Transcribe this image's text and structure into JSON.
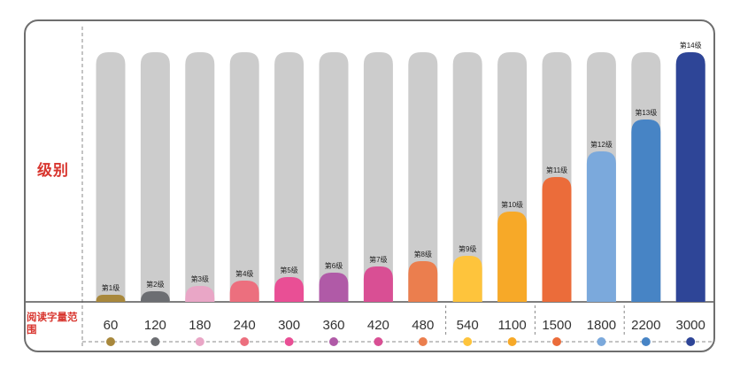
{
  "chart_data": {
    "type": "bar",
    "title": "",
    "ylabel": "级别",
    "row_label": "阅读字量范围",
    "categories": [
      "60",
      "120",
      "180",
      "240",
      "300",
      "360",
      "420",
      "480",
      "540",
      "1100",
      "1500",
      "1800",
      "2200",
      "3000"
    ],
    "level_labels": [
      "第1级",
      "第2级",
      "第3级",
      "第4级",
      "第5级",
      "第6级",
      "第7级",
      "第8级",
      "第9级",
      "第10级",
      "第11级",
      "第12级",
      "第13级",
      "第14级"
    ],
    "values": [
      1,
      2,
      3,
      4,
      5,
      6,
      7,
      8,
      9,
      10,
      11,
      12,
      13,
      14
    ],
    "ylim": [
      0,
      14
    ],
    "colors": [
      "#a8883c",
      "#6c6e72",
      "#e9a6c6",
      "#ec6f7e",
      "#e94f95",
      "#b05aa7",
      "#d94f94",
      "#eb7e4e",
      "#fec43c",
      "#f7a928",
      "#eb6c3a",
      "#7ba9dc",
      "#4784c5",
      "#2e4597"
    ],
    "track_color": "#cccccc"
  }
}
